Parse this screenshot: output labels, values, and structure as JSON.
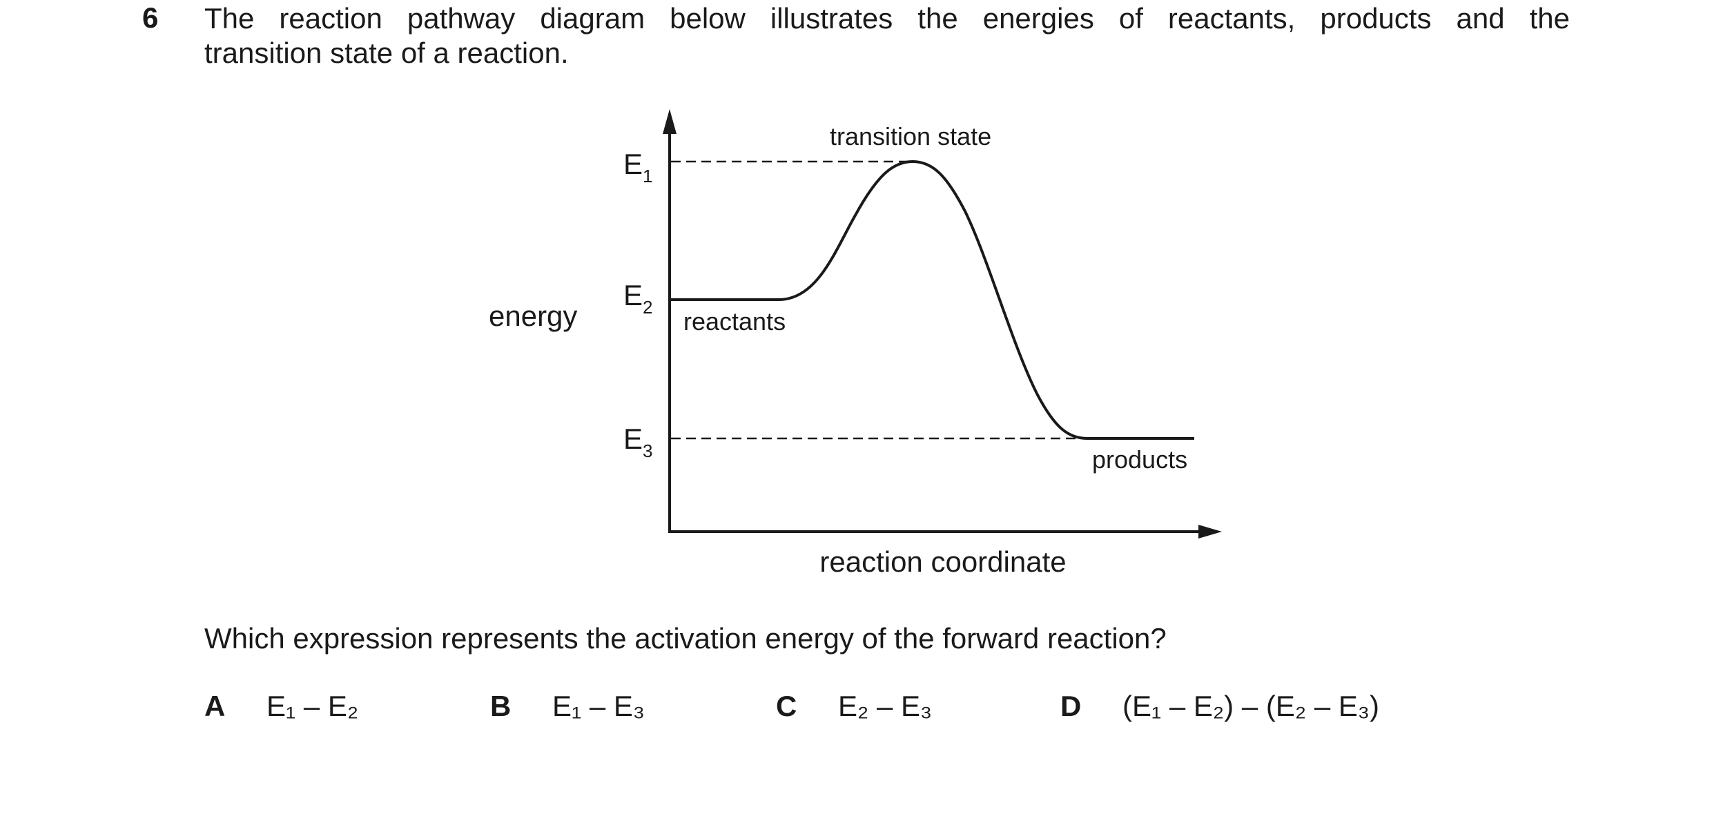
{
  "question": {
    "number": "6",
    "stem_line1": "The reaction pathway diagram below illustrates the energies of reactants, products and the",
    "stem_line2": "transition state of a reaction.",
    "prompt": "Which expression represents the activation energy of the forward reaction?"
  },
  "diagram": {
    "y_axis_label": "energy",
    "x_axis_label": "reaction coordinate",
    "levels": [
      {
        "symbol": "E",
        "subscript": "1"
      },
      {
        "symbol": "E",
        "subscript": "2"
      },
      {
        "symbol": "E",
        "subscript": "3"
      }
    ],
    "annotations": {
      "transition_state": "transition state",
      "reactants": "reactants",
      "products": "products"
    }
  },
  "options": [
    {
      "letter": "A",
      "expr": "E₁ – E₂"
    },
    {
      "letter": "B",
      "expr": "E₁ – E₃"
    },
    {
      "letter": "C",
      "expr": "E₂ – E₃"
    },
    {
      "letter": "D",
      "expr": "(E₁ – E₂) – (E₂ – E₃)"
    }
  ],
  "colors": {
    "ink": "#1a1a1a",
    "background": "#ffffff"
  }
}
